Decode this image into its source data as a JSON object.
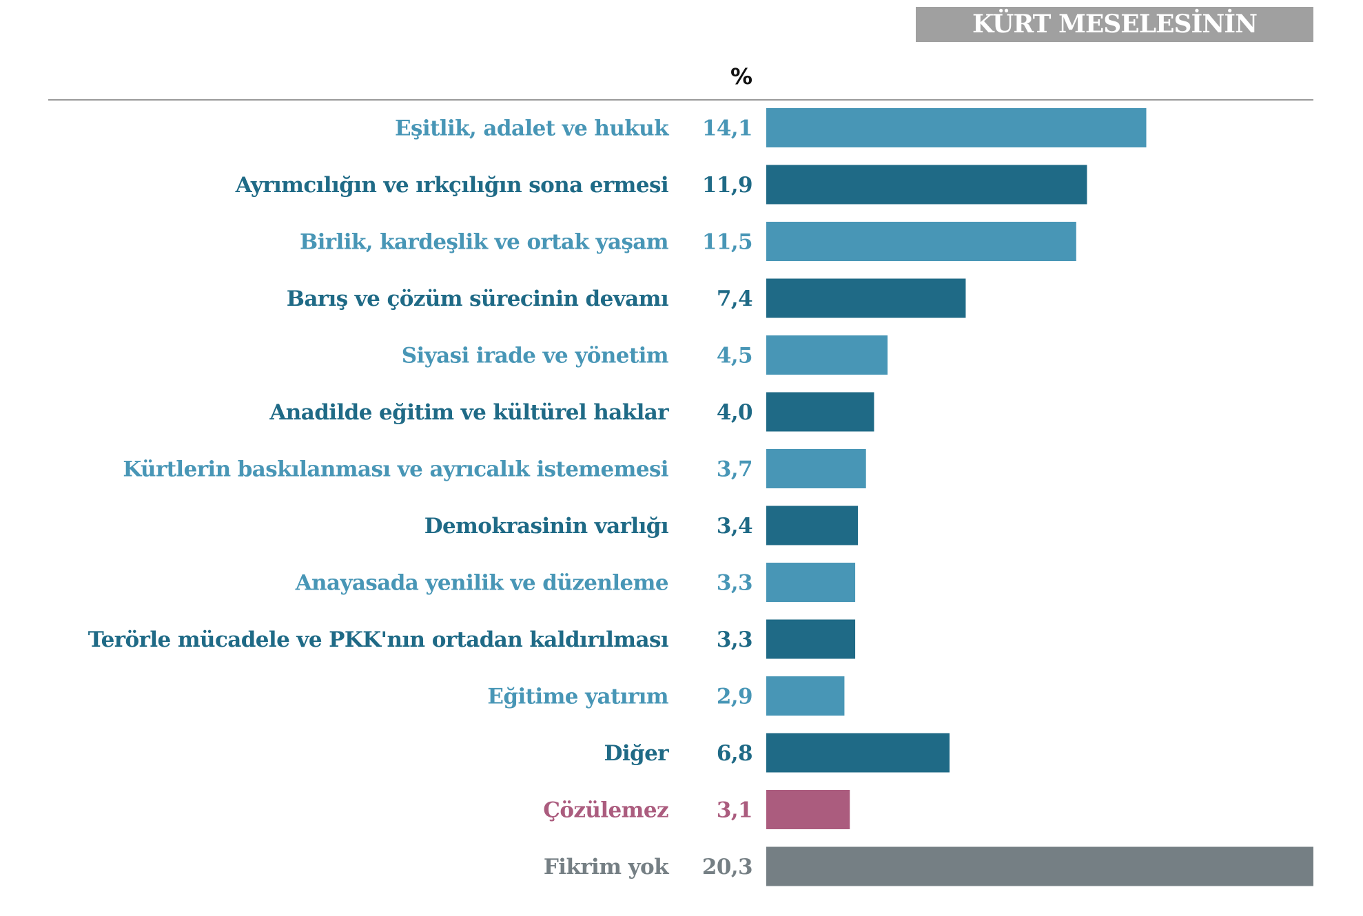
{
  "header": {
    "title": "KÜRT MESELESİNİN ÇÖZÜMÜ",
    "unit": "%"
  },
  "chart_data": {
    "type": "bar",
    "orientation": "horizontal",
    "title": "KÜRT MESELESİNİN ÇÖZÜMÜ",
    "unit": "%",
    "categories": [
      "Eşitlik, adalet ve hukuk",
      "Ayrımcılığın ve ırkçılığın sona ermesi",
      "Birlik, kardeşlik ve ortak yaşam",
      "Barış ve çözüm sürecinin devamı",
      "Siyasi irade ve yönetim",
      "Anadilde eğitim ve kültürel haklar",
      "Kürtlerin baskılanması ve ayrıcalık istememesi",
      "Demokrasinin varlığı",
      "Anayasada yenilik ve düzenleme",
      "Terörle mücadele ve PKK'nın ortadan kaldırılması",
      "Eğitime yatırım",
      "Diğer",
      "Çözülemez",
      "Fikrim yok"
    ],
    "values": [
      14.1,
      11.9,
      11.5,
      7.4,
      4.5,
      4.0,
      3.7,
      3.4,
      3.3,
      3.3,
      2.9,
      6.8,
      3.1,
      20.3
    ],
    "value_labels": [
      "14,1",
      "11,9",
      "11,5",
      "7,4",
      "4,5",
      "4,0",
      "3,7",
      "3,4",
      "3,3",
      "3,3",
      "2,9",
      "6,8",
      "3,1",
      "20,3"
    ],
    "colors": [
      "#4896b6",
      "#1f6a86",
      "#4896b6",
      "#1f6a86",
      "#4896b6",
      "#1f6a86",
      "#4896b6",
      "#1f6a86",
      "#4896b6",
      "#1f6a86",
      "#4896b6",
      "#1f6a86",
      "#ab5c7e",
      "#757f84"
    ],
    "xlim": [
      0,
      20.3
    ],
    "grid": false
  }
}
